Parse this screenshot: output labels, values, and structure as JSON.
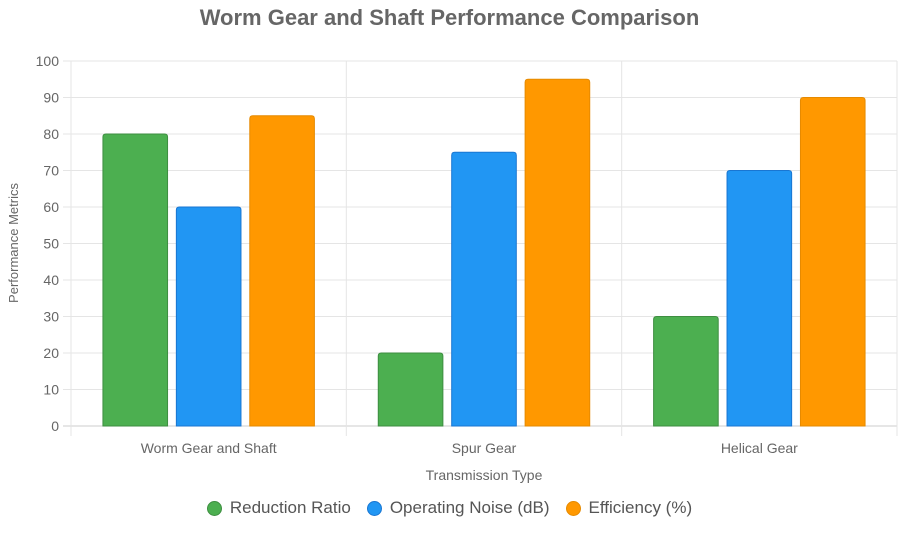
{
  "chart_data": {
    "type": "bar",
    "title": "Worm Gear and Shaft Performance Comparison",
    "xlabel": "Transmission Type",
    "ylabel": "Performance Metrics",
    "categories": [
      "Worm Gear and Shaft",
      "Spur Gear",
      "Helical Gear"
    ],
    "series": [
      {
        "name": "Reduction Ratio",
        "values": [
          80,
          20,
          30
        ],
        "color": "#4caf50",
        "border": "#3e8e41"
      },
      {
        "name": "Operating Noise (dB)",
        "values": [
          60,
          75,
          70
        ],
        "color": "#2196f3",
        "border": "#1976d2"
      },
      {
        "name": "Efficiency (%)",
        "values": [
          85,
          95,
          90
        ],
        "color": "#ff9800",
        "border": "#e68a00"
      }
    ],
    "ylim": [
      0,
      100
    ],
    "yticks": [
      0,
      10,
      20,
      30,
      40,
      50,
      60,
      70,
      80,
      90,
      100
    ],
    "grid": true,
    "legend_position": "bottom"
  }
}
